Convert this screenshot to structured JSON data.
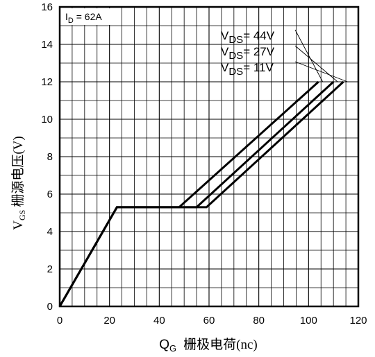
{
  "chart_data": {
    "type": "line",
    "title": "",
    "xlabel": {
      "main": "Q",
      "sub": "G",
      "rest": "栅极电荷(nc)"
    },
    "ylabel": {
      "main": "V",
      "sub": "GS",
      "rest": "栅源电压(V)"
    },
    "xlim": [
      0,
      120
    ],
    "ylim": [
      0,
      16
    ],
    "x_ticks": [
      "0",
      "20",
      "40",
      "60",
      "80",
      "100",
      "120"
    ],
    "y_ticks": [
      "0",
      "2",
      "4",
      "6",
      "8",
      "10",
      "12",
      "14",
      "16"
    ],
    "grid": true,
    "annotation": {
      "main": "I",
      "sub": "D",
      "rest": " = 62A"
    },
    "series": [
      {
        "name": {
          "main": "V",
          "sub": "DS",
          "rest": "= 44V"
        },
        "x": [
          0,
          23,
          48,
          104
        ],
        "y": [
          0,
          5.3,
          5.3,
          12
        ]
      },
      {
        "name": {
          "main": "V",
          "sub": "DS",
          "rest": "= 27V"
        },
        "x": [
          0,
          23,
          55,
          110
        ],
        "y": [
          0,
          5.3,
          5.3,
          12
        ]
      },
      {
        "name": {
          "main": "V",
          "sub": "DS",
          "rest": "= 11V"
        },
        "x": [
          0,
          23,
          59,
          114
        ],
        "y": [
          0,
          5.3,
          5.3,
          12
        ]
      }
    ],
    "legend_position": "top-right"
  }
}
